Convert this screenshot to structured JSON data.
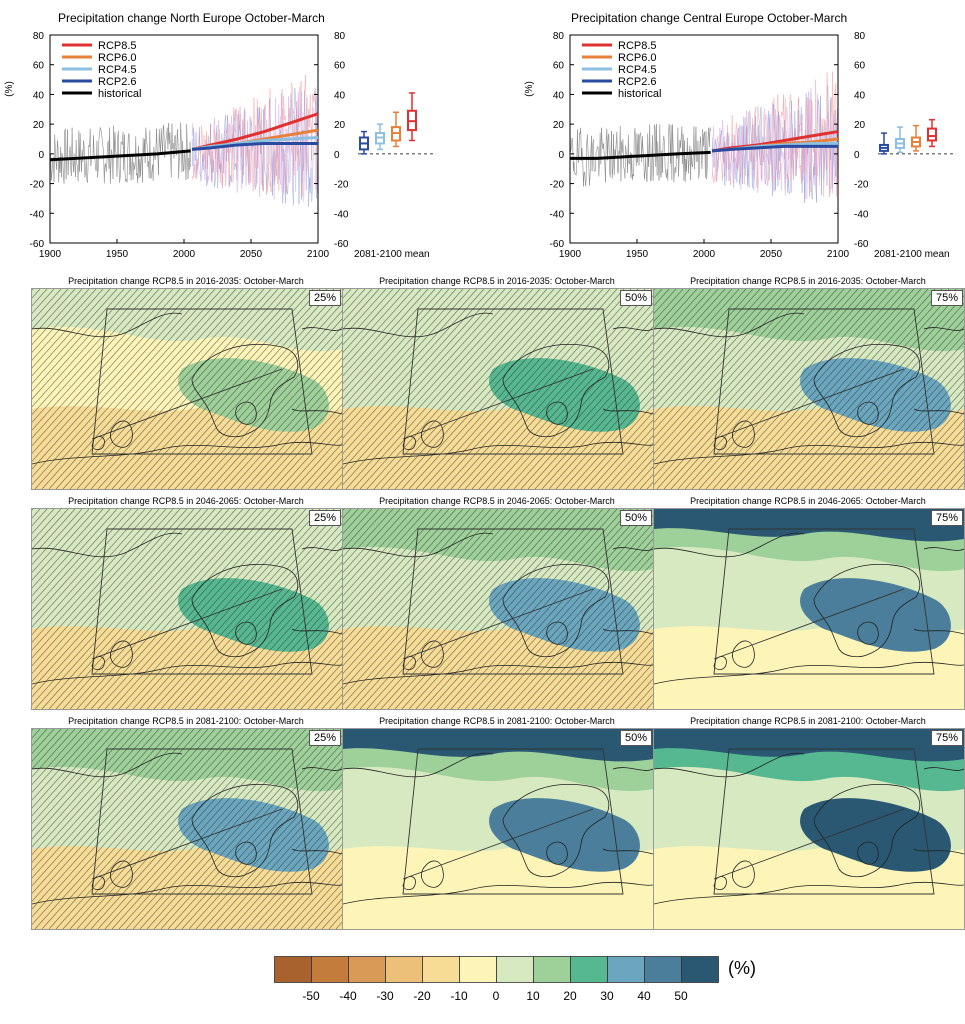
{
  "chart_data": [
    {
      "type": "line",
      "title": "Precipitation change North Europe October-March",
      "ylabel": "(%)",
      "xlim": [
        1900,
        2100
      ],
      "ylim": [
        -60,
        80
      ],
      "x_ticks": [
        "1900",
        "1950",
        "2000",
        "2050",
        "2100"
      ],
      "y_ticks": [
        "-60",
        "-40",
        "-20",
        "0",
        "20",
        "40",
        "60",
        "80"
      ],
      "series": [
        {
          "name": "RCP8.5",
          "color": "#e03030",
          "x": [
            2006,
            2020,
            2040,
            2060,
            2080,
            2100
          ],
          "y": [
            3,
            6,
            10,
            15,
            21,
            27
          ]
        },
        {
          "name": "RCP6.0",
          "color": "#e8803a",
          "x": [
            2006,
            2020,
            2040,
            2060,
            2080,
            2100
          ],
          "y": [
            3,
            5,
            7,
            10,
            13,
            16
          ]
        },
        {
          "name": "RCP4.5",
          "color": "#8cc0e0",
          "x": [
            2006,
            2020,
            2040,
            2060,
            2080,
            2100
          ],
          "y": [
            3,
            5,
            7,
            9,
            10,
            11
          ]
        },
        {
          "name": "RCP2.6",
          "color": "#2a4aa0",
          "x": [
            2006,
            2020,
            2040,
            2060,
            2080,
            2100
          ],
          "y": [
            3,
            4,
            6,
            7,
            7,
            7
          ]
        },
        {
          "name": "historical",
          "color": "#000000",
          "x": [
            1900,
            1920,
            1940,
            1960,
            1980,
            2005
          ],
          "y": [
            -4,
            -3,
            -2,
            -1,
            0,
            2
          ]
        }
      ],
      "box_label": "2081-2100 mean",
      "boxes": [
        {
          "name": "RCP2.6",
          "color": "#2a4aa0",
          "min": 0,
          "q1": 3,
          "median": 7,
          "q3": 11,
          "max": 15
        },
        {
          "name": "RCP4.5",
          "color": "#8cc0e0",
          "min": 3,
          "q1": 7,
          "median": 11,
          "q3": 14,
          "max": 20
        },
        {
          "name": "RCP6.0",
          "color": "#e8803a",
          "min": 5,
          "q1": 9,
          "median": 14,
          "q3": 18,
          "max": 28
        },
        {
          "name": "RCP8.5",
          "color": "#e03030",
          "min": 9,
          "q1": 16,
          "median": 22,
          "q3": 29,
          "max": 41
        }
      ]
    },
    {
      "type": "line",
      "title": "Precipitation change Central Europe October-March",
      "ylabel": "(%)",
      "xlim": [
        1900,
        2100
      ],
      "ylim": [
        -60,
        80
      ],
      "x_ticks": [
        "1900",
        "1950",
        "2000",
        "2050",
        "2100"
      ],
      "y_ticks": [
        "-60",
        "-40",
        "-20",
        "0",
        "20",
        "40",
        "60",
        "80"
      ],
      "series": [
        {
          "name": "RCP8.5",
          "color": "#e03030",
          "x": [
            2006,
            2020,
            2040,
            2060,
            2080,
            2100
          ],
          "y": [
            2,
            4,
            6,
            9,
            12,
            15
          ]
        },
        {
          "name": "RCP6.0",
          "color": "#e8803a",
          "x": [
            2006,
            2020,
            2040,
            2060,
            2080,
            2100
          ],
          "y": [
            2,
            3,
            5,
            7,
            8,
            10
          ]
        },
        {
          "name": "RCP4.5",
          "color": "#8cc0e0",
          "x": [
            2006,
            2020,
            2040,
            2060,
            2080,
            2100
          ],
          "y": [
            2,
            3,
            5,
            6,
            7,
            7
          ]
        },
        {
          "name": "RCP2.6",
          "color": "#2a4aa0",
          "x": [
            2006,
            2020,
            2040,
            2060,
            2080,
            2100
          ],
          "y": [
            2,
            3,
            4,
            5,
            5,
            5
          ]
        },
        {
          "name": "historical",
          "color": "#000000",
          "x": [
            1900,
            1920,
            1940,
            1960,
            1980,
            2005
          ],
          "y": [
            -3,
            -3,
            -2,
            -1,
            0,
            1
          ]
        }
      ],
      "box_label": "2081-2100 mean",
      "boxes": [
        {
          "name": "RCP2.6",
          "color": "#2a4aa0",
          "min": 0,
          "q1": 2,
          "median": 4,
          "q3": 6,
          "max": 14
        },
        {
          "name": "RCP4.5",
          "color": "#8cc0e0",
          "min": 1,
          "q1": 4,
          "median": 7,
          "q3": 10,
          "max": 18
        },
        {
          "name": "RCP6.0",
          "color": "#e8803a",
          "min": 2,
          "q1": 5,
          "median": 8,
          "q3": 11,
          "max": 19
        },
        {
          "name": "RCP8.5",
          "color": "#e03030",
          "min": 5,
          "q1": 9,
          "median": 12,
          "q3": 17,
          "max": 23
        }
      ]
    },
    {
      "type": "heatmap",
      "maps": [
        {
          "title": "Precipitation change RCP8.5 in 2016-2035: October-March",
          "percentile": "25%",
          "level": 0
        },
        {
          "title": "Precipitation change RCP8.5 in 2016-2035: October-March",
          "percentile": "50%",
          "level": 1
        },
        {
          "title": "Precipitation change RCP8.5 in 2016-2035: October-March",
          "percentile": "75%",
          "level": 2
        },
        {
          "title": "Precipitation change RCP8.5 in 2046-2065: October-March",
          "percentile": "25%",
          "level": 1
        },
        {
          "title": "Precipitation change RCP8.5 in 2046-2065: October-March",
          "percentile": "50%",
          "level": 2
        },
        {
          "title": "Precipitation change RCP8.5 in 2046-2065: October-March",
          "percentile": "75%",
          "level": 3
        },
        {
          "title": "Precipitation change RCP8.5 in 2081-2100: October-March",
          "percentile": "25%",
          "level": 2
        },
        {
          "title": "Precipitation change RCP8.5 in 2081-2100: October-March",
          "percentile": "50%",
          "level": 3
        },
        {
          "title": "Precipitation change RCP8.5 in 2081-2100: October-March",
          "percentile": "75%",
          "level": 4
        }
      ],
      "colorbar": {
        "unit": "(%)",
        "labels": [
          "-50",
          "-40",
          "-30",
          "-20",
          "-10",
          "0",
          "10",
          "20",
          "30",
          "40",
          "50"
        ],
        "colors": [
          "#a8622e",
          "#c47c3c",
          "#d99a58",
          "#ecc078",
          "#f7dc96",
          "#fdf5b8",
          "#d6e9c0",
          "#9ed09a",
          "#56b890",
          "#6aa6be",
          "#4a7e9a",
          "#2a5872"
        ]
      }
    }
  ]
}
